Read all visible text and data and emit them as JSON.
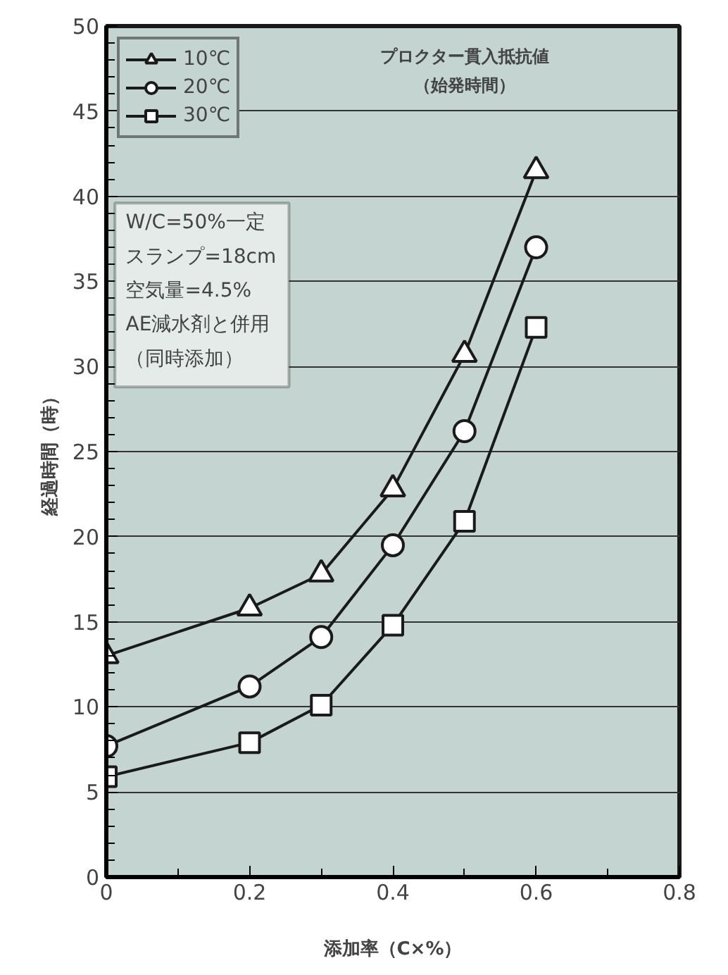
{
  "chart_data": {
    "type": "line",
    "xlabel": "添加率（C×%）",
    "ylabel": "経過時間（時）",
    "xlim": [
      0,
      0.8
    ],
    "xticks": [
      0,
      0.2,
      0.4,
      0.6,
      0.8
    ],
    "ylim": [
      0,
      50
    ],
    "yticks": [
      0,
      5,
      10,
      15,
      20,
      25,
      30,
      35,
      40,
      45,
      50
    ],
    "grid": "y",
    "legend": "top left",
    "line_style": "solid",
    "series": [
      {
        "name": "10℃",
        "color": "#1a1a1a",
        "marker": "triangle",
        "x": [
          0,
          0.2,
          0.3,
          0.4,
          0.5,
          0.6
        ],
        "values": [
          13,
          15.8,
          17.8,
          22.8,
          30.7,
          41.5
        ]
      },
      {
        "name": "20℃",
        "color": "#1a1a1a",
        "marker": "circle",
        "x": [
          0,
          0.2,
          0.3,
          0.4,
          0.5,
          0.6
        ],
        "values": [
          7.7,
          11.2,
          14.1,
          19.5,
          26.2,
          37
        ]
      },
      {
        "name": "30℃",
        "color": "#1a1a1a",
        "marker": "square",
        "x": [
          0,
          0.2,
          0.3,
          0.4,
          0.5,
          0.6
        ],
        "values": [
          5.9,
          7.9,
          10.1,
          14.8,
          20.9,
          32.3
        ]
      }
    ],
    "annotations": [
      "プロクター貫入抵抗値",
      "（始発時間）",
      "W/C=50%一定",
      "スランプ=18cm",
      "空気量=4.5%",
      "AE減水剤と併用",
      "（同時添加）"
    ]
  }
}
